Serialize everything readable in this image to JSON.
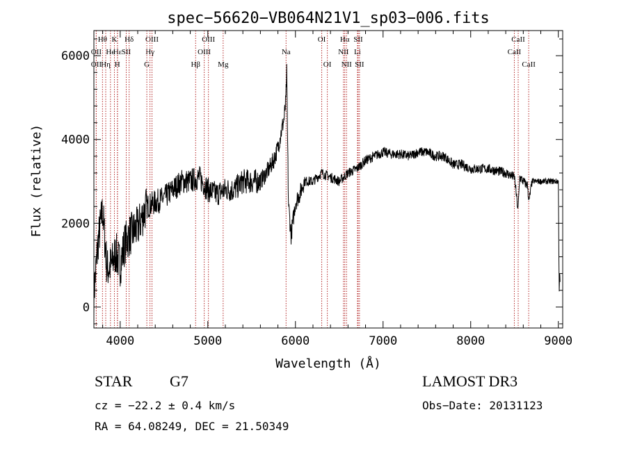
{
  "chart_data": {
    "type": "line",
    "title": "spec−56620−VB064N21V1_sp03−006.fits",
    "xlabel": "Wavelength (Å)",
    "ylabel": "Flux (relative)",
    "xlim": [
      3700,
      9050
    ],
    "ylim": [
      -500,
      6600
    ],
    "xticks": [
      4000,
      5000,
      6000,
      7000,
      8000,
      9000
    ],
    "xtick_labels": [
      "4000",
      "5000",
      "6000",
      "7000",
      "8000",
      "9000"
    ],
    "yticks": [
      0,
      2000,
      4000,
      6000
    ],
    "ytick_labels": [
      "0",
      "2000",
      "4000",
      "6000"
    ],
    "grid": false,
    "series": [
      {
        "name": "flux",
        "color": "#000000",
        "x": [
          3700,
          3750,
          3800,
          3850,
          3900,
          3950,
          4000,
          4050,
          4100,
          4150,
          4200,
          4300,
          4400,
          4500,
          4600,
          4700,
          4800,
          4900,
          5000,
          5100,
          5200,
          5300,
          5400,
          5500,
          5600,
          5700,
          5750,
          5800,
          5850,
          5870,
          5890,
          5900,
          5920,
          5950,
          6000,
          6050,
          6100,
          6150,
          6200,
          6300,
          6400,
          6500,
          6600,
          6700,
          6800,
          6900,
          7000,
          7100,
          7200,
          7300,
          7400,
          7500,
          7600,
          7700,
          7800,
          7900,
          8000,
          8100,
          8200,
          8300,
          8400,
          8500,
          8540,
          8560,
          8600,
          8650,
          8664,
          8700,
          8800,
          8900,
          8950,
          9000,
          9010,
          9015,
          9020
        ],
        "y": [
          300,
          1600,
          2300,
          900,
          1000,
          1300,
          1000,
          1500,
          1700,
          1800,
          1900,
          2400,
          2500,
          2600,
          2800,
          3000,
          3000,
          3100,
          2800,
          2700,
          2800,
          2800,
          3000,
          3000,
          3000,
          3300,
          3500,
          3800,
          4300,
          4500,
          4900,
          5600,
          2500,
          1700,
          2500,
          2700,
          3000,
          3000,
          3000,
          3200,
          3100,
          3000,
          3200,
          3300,
          3500,
          3600,
          3700,
          3650,
          3650,
          3600,
          3700,
          3700,
          3600,
          3600,
          3400,
          3400,
          3300,
          3300,
          3300,
          3250,
          3200,
          3100,
          2300,
          3100,
          3000,
          2900,
          2500,
          3000,
          3000,
          3000,
          3000,
          3000,
          400,
          800,
          600
        ]
      }
    ],
    "line_markers": [
      {
        "label": "Hθ",
        "x": 3798,
        "row": 1
      },
      {
        "label": "OII",
        "x": 3727,
        "row": 2
      },
      {
        "label": "OII",
        "x": 3727,
        "row": 3
      },
      {
        "label": "He",
        "x": 3889,
        "row": 2
      },
      {
        "label": "K",
        "x": 3934,
        "row": 1
      },
      {
        "label": "Hη",
        "x": 3835,
        "row": 3
      },
      {
        "label": "Hε",
        "x": 3970,
        "row": 2
      },
      {
        "label": "SII",
        "x": 4069,
        "row": 2
      },
      {
        "label": "H",
        "x": 3968,
        "row": 3
      },
      {
        "label": "Hδ",
        "x": 4102,
        "row": 1
      },
      {
        "label": "OIII",
        "x": 4363,
        "row": 1
      },
      {
        "label": "Hγ",
        "x": 4340,
        "row": 2
      },
      {
        "label": "G",
        "x": 4304,
        "row": 3
      },
      {
        "label": "Hβ",
        "x": 4861,
        "row": 3
      },
      {
        "label": "OIII",
        "x": 5007,
        "row": 1
      },
      {
        "label": "OIII",
        "x": 4959,
        "row": 2
      },
      {
        "label": "Mg",
        "x": 5175,
        "row": 3
      },
      {
        "label": "Na",
        "x": 5893,
        "row": 2
      },
      {
        "label": "OI",
        "x": 6300,
        "row": 1
      },
      {
        "label": "OI",
        "x": 6364,
        "row": 3
      },
      {
        "label": "Hα",
        "x": 6563,
        "row": 1
      },
      {
        "label": "NII",
        "x": 6548,
        "row": 2
      },
      {
        "label": "NII",
        "x": 6583,
        "row": 3
      },
      {
        "label": "SII",
        "x": 6716,
        "row": 1
      },
      {
        "label": "Li",
        "x": 6708,
        "row": 2
      },
      {
        "label": "SII",
        "x": 6731,
        "row": 3
      },
      {
        "label": "CaII",
        "x": 8542,
        "row": 1
      },
      {
        "label": "CaII",
        "x": 8498,
        "row": 2
      },
      {
        "label": "CaII",
        "x": 8662,
        "row": 3
      }
    ]
  },
  "info": {
    "object_class": "STAR",
    "subclass": "G7",
    "redshift": "cz = −22.2 ± 0.4 km/s",
    "coords": "RA =  64.08249, DEC =  21.50349",
    "survey": "LAMOST DR3",
    "obs_date": "Obs−Date: 20131123"
  }
}
